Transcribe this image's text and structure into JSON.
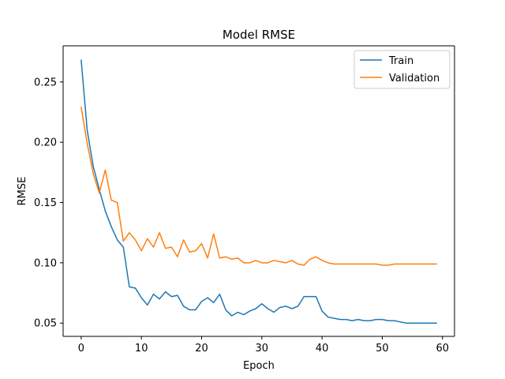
{
  "chart_data": {
    "type": "line",
    "title": "Model RMSE",
    "xlabel": "Epoch",
    "ylabel": "RMSE",
    "xlim": [
      -3,
      62
    ],
    "ylim": [
      0.039,
      0.28
    ],
    "xticks": [
      0,
      10,
      20,
      30,
      40,
      50,
      60
    ],
    "yticks": [
      0.05,
      0.1,
      0.15,
      0.2,
      0.25
    ],
    "ytick_labels": [
      "0.05",
      "0.10",
      "0.15",
      "0.20",
      "0.25"
    ],
    "grid": false,
    "legend_position": "top-right",
    "x": [
      0,
      1,
      2,
      3,
      4,
      5,
      6,
      7,
      8,
      9,
      10,
      11,
      12,
      13,
      14,
      15,
      16,
      17,
      18,
      19,
      20,
      21,
      22,
      23,
      24,
      25,
      26,
      27,
      28,
      29,
      30,
      31,
      32,
      33,
      34,
      35,
      36,
      37,
      38,
      39,
      40,
      41,
      42,
      43,
      44,
      45,
      46,
      47,
      48,
      49,
      50,
      51,
      52,
      53,
      54,
      55,
      56,
      57,
      58,
      59
    ],
    "series": [
      {
        "name": "Train",
        "color": "#1f77b4",
        "values": [
          0.268,
          0.21,
          0.18,
          0.161,
          0.143,
          0.13,
          0.119,
          0.113,
          0.08,
          0.079,
          0.071,
          0.065,
          0.074,
          0.07,
          0.076,
          0.072,
          0.073,
          0.064,
          0.061,
          0.061,
          0.068,
          0.071,
          0.067,
          0.074,
          0.061,
          0.056,
          0.059,
          0.057,
          0.06,
          0.062,
          0.066,
          0.062,
          0.059,
          0.063,
          0.064,
          0.062,
          0.064,
          0.072,
          0.072,
          0.072,
          0.06,
          0.055,
          0.054,
          0.053,
          0.053,
          0.052,
          0.053,
          0.052,
          0.052,
          0.053,
          0.053,
          0.052,
          0.052,
          0.051,
          0.05,
          0.05,
          0.05,
          0.05,
          0.05,
          0.05
        ]
      },
      {
        "name": "Validation",
        "color": "#ff7f0e",
        "values": [
          0.229,
          0.199,
          0.174,
          0.158,
          0.177,
          0.152,
          0.15,
          0.118,
          0.125,
          0.119,
          0.11,
          0.12,
          0.113,
          0.125,
          0.112,
          0.113,
          0.105,
          0.119,
          0.109,
          0.11,
          0.116,
          0.104,
          0.124,
          0.104,
          0.105,
          0.103,
          0.104,
          0.1,
          0.1,
          0.102,
          0.1,
          0.1,
          0.102,
          0.101,
          0.1,
          0.102,
          0.099,
          0.098,
          0.103,
          0.105,
          0.102,
          0.1,
          0.099,
          0.099,
          0.099,
          0.099,
          0.099,
          0.099,
          0.099,
          0.099,
          0.098,
          0.098,
          0.099,
          0.099,
          0.099,
          0.099,
          0.099,
          0.099,
          0.099,
          0.099
        ]
      }
    ]
  }
}
